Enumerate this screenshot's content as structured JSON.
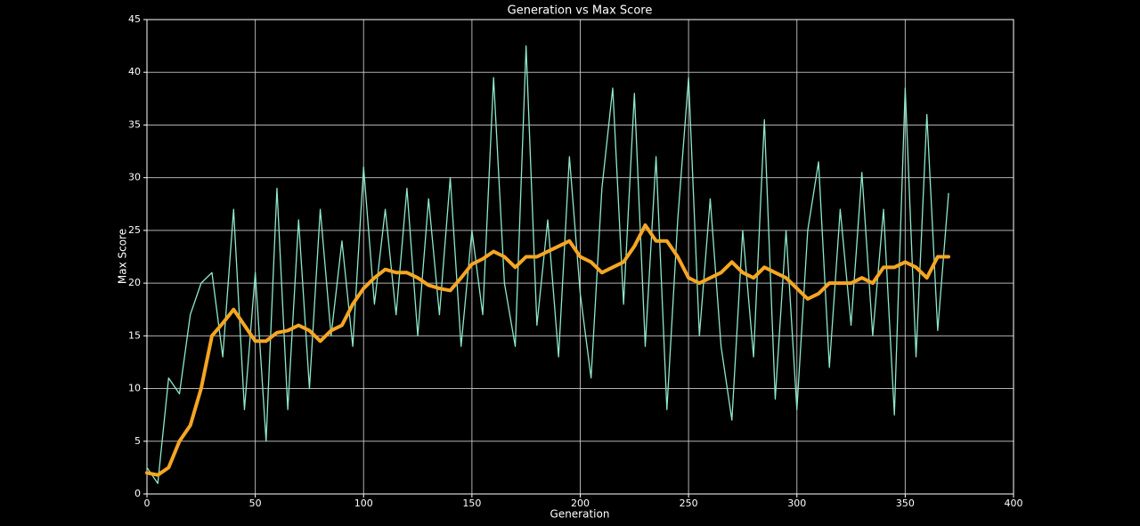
{
  "chart_data": {
    "type": "line",
    "title": "Generation vs Max Score",
    "x_label": "Generation",
    "y_label": "Max Score",
    "x": [
      0,
      5,
      10,
      15,
      20,
      25,
      30,
      35,
      40,
      45,
      50,
      55,
      60,
      65,
      70,
      75,
      80,
      85,
      90,
      95,
      100,
      105,
      110,
      115,
      120,
      125,
      130,
      135,
      140,
      145,
      150,
      155,
      160,
      165,
      170,
      175,
      180,
      185,
      190,
      195,
      200,
      205,
      210,
      215,
      220,
      225,
      230,
      235,
      240,
      245,
      250,
      255,
      260,
      265,
      270,
      275,
      280,
      285,
      290,
      295,
      300,
      305,
      310,
      315,
      320,
      325,
      330,
      335,
      340,
      345,
      350,
      355,
      360,
      365,
      370
    ],
    "series": [
      {
        "color": "#8ee8c8",
        "width": 1.3,
        "values": [
          2.5,
          1,
          11,
          9.5,
          17,
          20,
          21,
          13,
          27,
          8,
          21,
          5,
          29,
          8,
          26,
          10,
          27,
          15,
          24,
          14,
          31,
          18,
          27,
          17,
          29,
          15,
          28,
          17,
          30,
          14,
          25,
          17,
          39.5,
          20,
          14,
          42.5,
          16,
          26,
          13,
          32,
          19,
          11,
          29,
          38.5,
          18,
          38,
          14,
          32,
          8,
          26,
          39.5,
          15,
          28,
          14,
          7,
          25,
          13,
          35.5,
          9,
          25,
          8,
          25,
          31.5,
          12,
          27,
          16,
          30.5,
          15,
          27,
          7.5,
          38.5,
          13,
          36,
          15.5,
          28.5
        ]
      },
      {
        "color": "#f5a623",
        "width": 4,
        "values": [
          2,
          1.8,
          2.5,
          5,
          6.5,
          10,
          15,
          16.2,
          17.5,
          16,
          14.5,
          14.5,
          15.3,
          15.5,
          16,
          15.5,
          14.5,
          15.5,
          16,
          18,
          19.5,
          20.5,
          21.3,
          21,
          21,
          20.5,
          19.8,
          19.5,
          19.3,
          20.5,
          21.8,
          22.3,
          23,
          22.5,
          21.5,
          22.5,
          22.5,
          23,
          23.5,
          24,
          22.5,
          22,
          21,
          21.5,
          22,
          23.5,
          25.5,
          24,
          24,
          22.5,
          20.5,
          20,
          20.5,
          21,
          22,
          21,
          20.5,
          21.5,
          21,
          20.5,
          19.5,
          18.5,
          19,
          20,
          20,
          20,
          20.5,
          20,
          21.5,
          21.5,
          22,
          21.5,
          20.5,
          22.5,
          22.5
        ]
      }
    ],
    "xlim": [
      0,
      400
    ],
    "xticks": [
      0,
      50,
      100,
      150,
      200,
      250,
      300,
      350,
      400
    ],
    "ylim": [
      0,
      45
    ],
    "yticks": [
      0,
      5,
      10,
      15,
      20,
      25,
      30,
      35,
      40,
      45
    ],
    "grid": true
  }
}
